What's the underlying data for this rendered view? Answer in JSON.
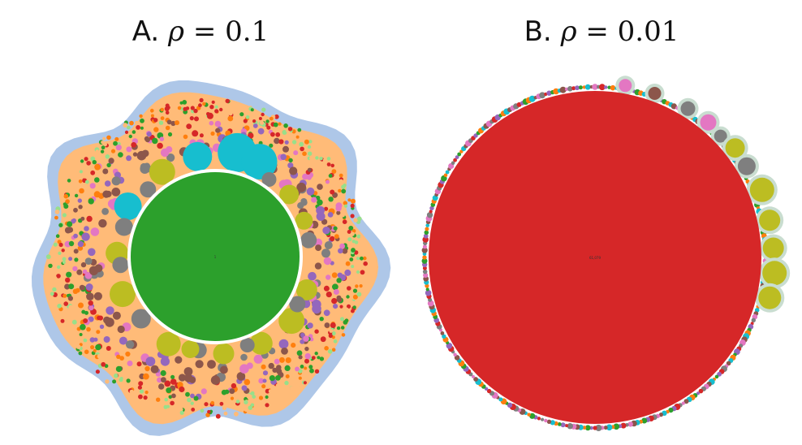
{
  "panels": [
    {
      "id": "A",
      "title_prefix": "A.",
      "title_symbol": "ρ",
      "title_eq": "= 0.1",
      "main_circle": {
        "color": "#2ca02c",
        "label": "1"
      },
      "ring_palette": [
        "#17becf",
        "#bcbd22",
        "#7f7f7f",
        "#e377c2",
        "#8c564b",
        "#9467bd",
        "#d62728",
        "#2ca02c",
        "#ff7f0e",
        "#98df8a",
        "#ffbb78",
        "#aec7e8",
        "#1f77b4"
      ]
    },
    {
      "id": "B",
      "title_prefix": "B.",
      "title_symbol": "ρ",
      "title_eq": "= 0.01",
      "main_circle": {
        "color": "#d62728",
        "label": "61,079"
      },
      "ring_palette": [
        "#bcbd22",
        "#7f7f7f",
        "#e377c2",
        "#8c564b",
        "#9467bd",
        "#d62728",
        "#2ca02c",
        "#ff7f0e",
        "#17becf"
      ]
    }
  ]
}
